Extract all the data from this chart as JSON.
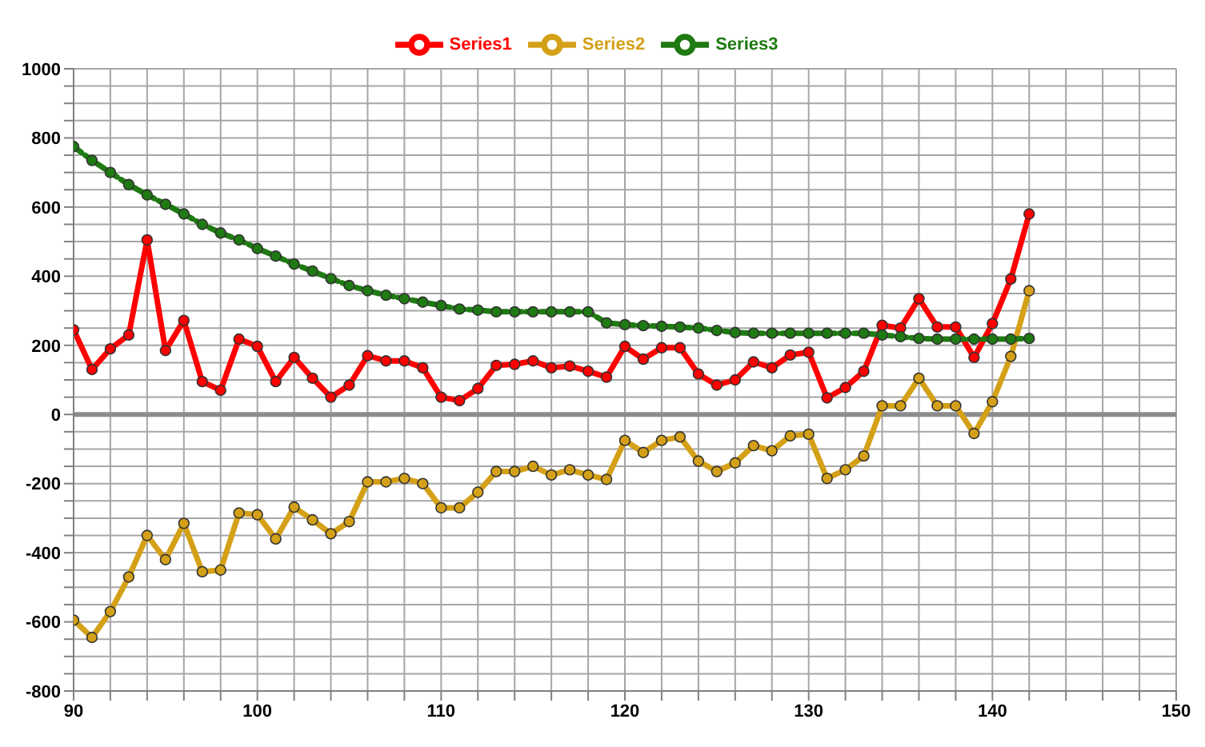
{
  "chart_data": {
    "type": "line",
    "x": [
      90,
      91,
      92,
      93,
      94,
      95,
      96,
      97,
      98,
      99,
      100,
      101,
      102,
      103,
      104,
      105,
      106,
      107,
      108,
      109,
      110,
      111,
      112,
      113,
      114,
      115,
      116,
      117,
      118,
      119,
      120,
      121,
      122,
      123,
      124,
      125,
      126,
      127,
      128,
      129,
      130,
      131,
      132,
      133,
      134,
      135,
      136,
      137,
      138,
      139,
      140,
      141,
      142
    ],
    "series": [
      {
        "name": "Series1",
        "color": "#ff0000",
        "values": [
          245,
          130,
          190,
          230,
          505,
          185,
          272,
          95,
          70,
          218,
          197,
          95,
          165,
          105,
          50,
          85,
          170,
          155,
          155,
          135,
          50,
          40,
          75,
          142,
          145,
          155,
          135,
          140,
          125,
          108,
          197,
          160,
          193,
          193,
          117,
          85,
          100,
          152,
          135,
          172,
          180,
          48,
          78,
          125,
          258,
          250,
          335,
          253,
          253,
          165,
          263,
          392,
          580
        ]
      },
      {
        "name": "Series2",
        "color": "#d4a017",
        "values": [
          -595,
          -645,
          -570,
          -470,
          -350,
          -420,
          -315,
          -455,
          -450,
          -285,
          -290,
          -360,
          -268,
          -305,
          -345,
          -310,
          -195,
          -195,
          -185,
          -200,
          -270,
          -270,
          -225,
          -165,
          -165,
          -150,
          -175,
          -160,
          -175,
          -188,
          -75,
          -110,
          -75,
          -65,
          -135,
          -165,
          -140,
          -90,
          -105,
          -62,
          -57,
          -185,
          -160,
          -120,
          25,
          25,
          105,
          25,
          25,
          -55,
          37,
          168,
          358
        ]
      },
      {
        "name": "Series3",
        "color": "#1e7a12",
        "line_style": "dashed",
        "values": [
          775,
          735,
          700,
          665,
          635,
          608,
          580,
          550,
          525,
          505,
          480,
          458,
          435,
          415,
          393,
          373,
          358,
          345,
          335,
          325,
          315,
          305,
          302,
          297,
          297,
          297,
          297,
          297,
          297,
          265,
          260,
          257,
          255,
          253,
          250,
          243,
          237,
          235,
          235,
          235,
          235,
          235,
          235,
          235,
          230,
          225,
          220,
          218,
          218,
          218,
          218,
          218,
          220
        ]
      }
    ],
    "xlim": [
      90,
      150
    ],
    "xticks": [
      90,
      {
        "value": 92,
        "label": null
      },
      {
        "value": 94,
        "label": null
      },
      {
        "value": 96,
        "label": null
      },
      {
        "value": 98,
        "label": null
      },
      100,
      {
        "value": 102,
        "label": null
      },
      {
        "value": 104,
        "label": null
      },
      {
        "value": 106,
        "label": null
      },
      {
        "value": 108,
        "label": null
      },
      110,
      {
        "value": 112,
        "label": null
      },
      {
        "value": 114,
        "label": null
      },
      {
        "value": 116,
        "label": null
      },
      {
        "value": 118,
        "label": null
      },
      120,
      {
        "value": 122,
        "label": null
      },
      {
        "value": 124,
        "label": null
      },
      {
        "value": 126,
        "label": null
      },
      {
        "value": 128,
        "label": null
      },
      130,
      {
        "value": 132,
        "label": null
      },
      {
        "value": 134,
        "label": null
      },
      {
        "value": 136,
        "label": null
      },
      {
        "value": 138,
        "label": null
      },
      140,
      {
        "value": 142,
        "label": null
      },
      {
        "value": 144,
        "label": null
      },
      {
        "value": 146,
        "label": null
      },
      {
        "value": 148,
        "label": null
      },
      150
    ],
    "ylim": [
      -800,
      1000
    ],
    "yticks": [
      -800,
      {
        "value": -750,
        "label": null
      },
      {
        "value": -700,
        "label": null
      },
      {
        "value": -650,
        "label": null
      },
      -600,
      {
        "value": -550,
        "label": null
      },
      {
        "value": -500,
        "label": null
      },
      {
        "value": -450,
        "label": null
      },
      -400,
      {
        "value": -350,
        "label": null
      },
      {
        "value": -300,
        "label": null
      },
      {
        "value": -250,
        "label": null
      },
      -200,
      {
        "value": -150,
        "label": null
      },
      {
        "value": -100,
        "label": null
      },
      {
        "value": -50,
        "label": null
      },
      0,
      {
        "value": 50,
        "label": null
      },
      {
        "value": 100,
        "label": null
      },
      {
        "value": 150,
        "label": null
      },
      200,
      {
        "value": 250,
        "label": null
      },
      {
        "value": 300,
        "label": null
      },
      {
        "value": 350,
        "label": null
      },
      400,
      {
        "value": 450,
        "label": null
      },
      {
        "value": 500,
        "label": null
      },
      {
        "value": 550,
        "label": null
      },
      600,
      {
        "value": 650,
        "label": null
      },
      {
        "value": 700,
        "label": null
      },
      {
        "value": 750,
        "label": null
      },
      800,
      {
        "value": 850,
        "label": null
      },
      {
        "value": 900,
        "label": null
      },
      {
        "value": 950,
        "label": null
      },
      1000
    ],
    "ref_lines": [
      {
        "axis": "y",
        "value": 0,
        "color": "#8c8c8c"
      }
    ],
    "grid": true,
    "legend": "top",
    "marker": "circle"
  }
}
